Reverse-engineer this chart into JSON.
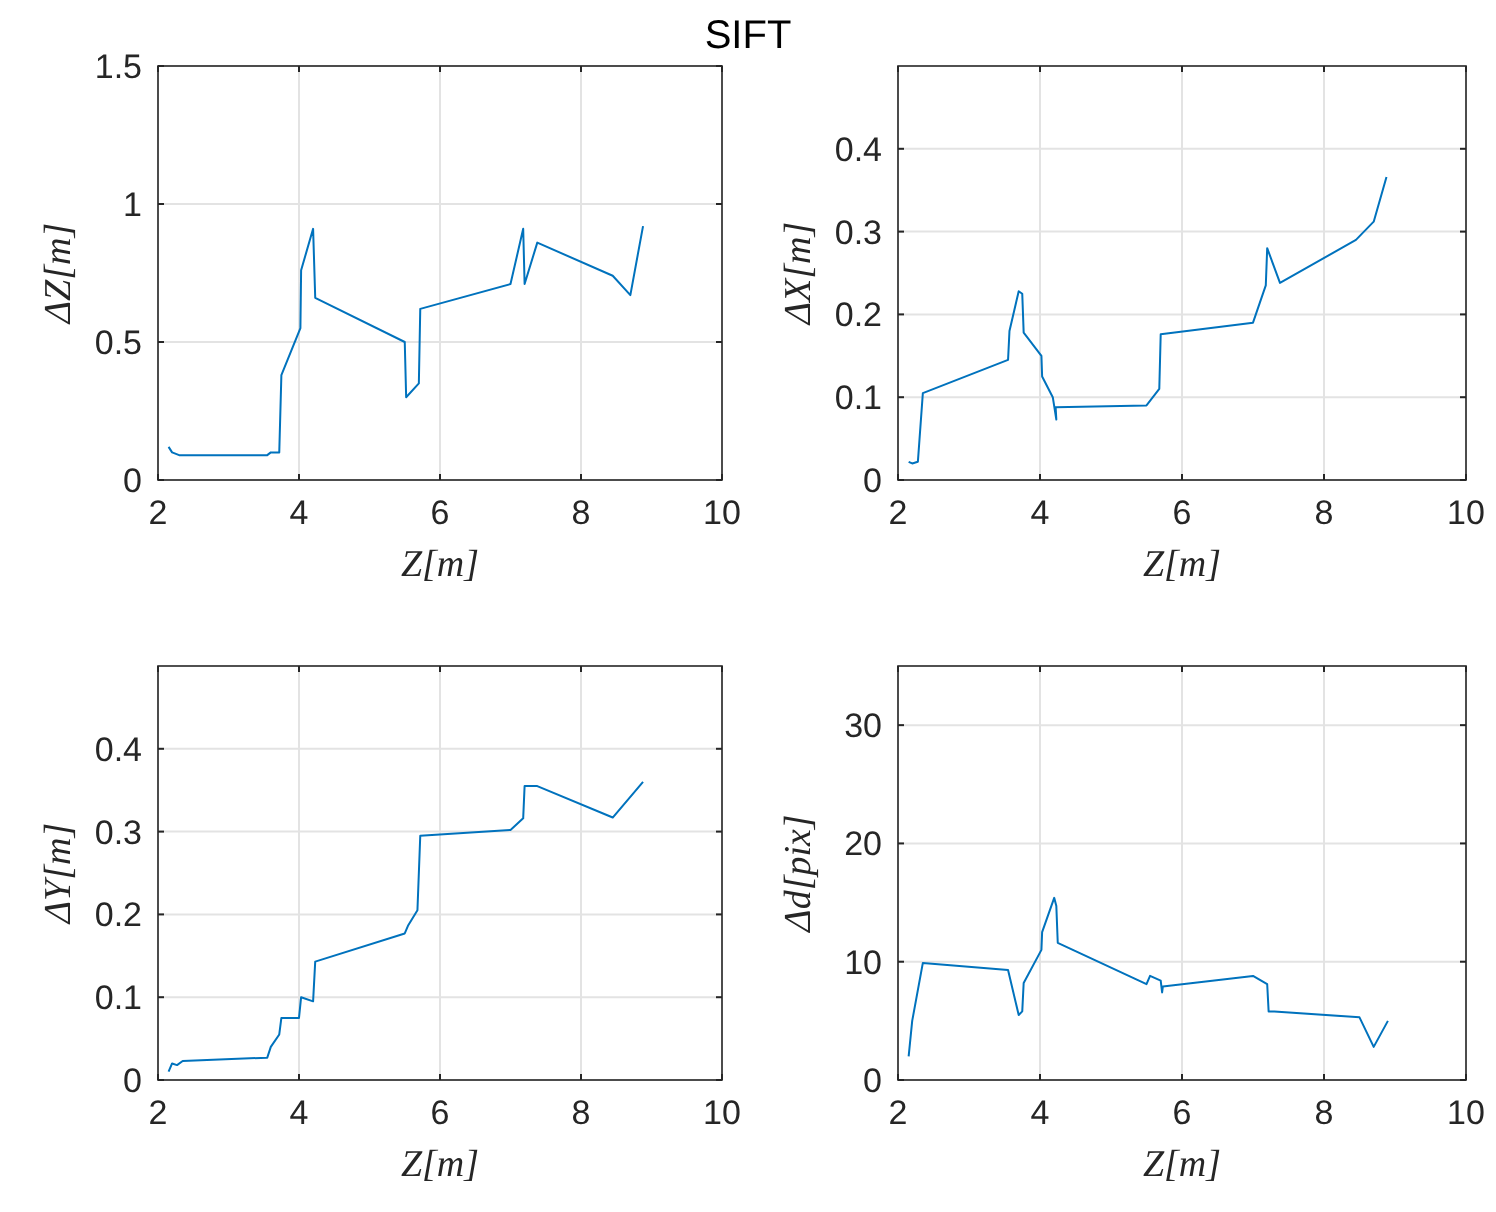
{
  "chart_data": [
    {
      "type": "line",
      "title": "SIFT",
      "xlabel": "Z[m]",
      "ylabel": "ΔZ[m]",
      "xlim": [
        2,
        10
      ],
      "xticks": [
        2,
        4,
        6,
        8,
        10
      ],
      "ylim": [
        0,
        1.5
      ],
      "yticks": [
        0,
        0.5,
        1,
        1.5
      ],
      "grid": true,
      "series": [
        {
          "color": "#0072bd",
          "x": [
            2.15,
            2.2,
            2.3,
            3.55,
            3.6,
            3.72,
            3.75,
            4.02,
            4.03,
            4.2,
            4.23,
            5.5,
            5.52,
            5.7,
            5.72,
            7.0,
            7.18,
            7.2,
            7.38,
            8.45,
            8.7,
            8.88
          ],
          "values": [
            0.12,
            0.1,
            0.09,
            0.09,
            0.1,
            0.1,
            0.38,
            0.55,
            0.76,
            0.91,
            0.66,
            0.5,
            0.3,
            0.35,
            0.62,
            0.71,
            0.91,
            0.71,
            0.86,
            0.74,
            0.67,
            0.92
          ]
        }
      ]
    },
    {
      "type": "line",
      "xlabel": "Z[m]",
      "ylabel": "ΔX[m]",
      "xlim": [
        2,
        10
      ],
      "xticks": [
        2,
        4,
        6,
        8,
        10
      ],
      "ylim": [
        0,
        0.5
      ],
      "yticks": [
        0,
        0.1,
        0.2,
        0.3,
        0.4
      ],
      "grid": true,
      "series": [
        {
          "color": "#0072bd",
          "x": [
            2.15,
            2.2,
            2.28,
            2.35,
            3.55,
            3.57,
            3.7,
            3.75,
            3.77,
            4.02,
            4.03,
            4.18,
            4.23,
            4.22,
            5.5,
            5.68,
            5.7,
            7.0,
            7.18,
            7.2,
            7.38,
            8.45,
            8.7,
            8.88
          ],
          "values": [
            0.022,
            0.02,
            0.022,
            0.105,
            0.145,
            0.18,
            0.228,
            0.225,
            0.178,
            0.15,
            0.125,
            0.1,
            0.073,
            0.088,
            0.09,
            0.11,
            0.176,
            0.19,
            0.235,
            0.28,
            0.238,
            0.29,
            0.312,
            0.366
          ]
        }
      ]
    },
    {
      "type": "line",
      "xlabel": "Z[m]",
      "ylabel": "ΔY[m]",
      "xlim": [
        2,
        10
      ],
      "xticks": [
        2,
        4,
        6,
        8,
        10
      ],
      "ylim": [
        0,
        0.5
      ],
      "yticks": [
        0,
        0.1,
        0.2,
        0.3,
        0.4
      ],
      "grid": true,
      "series": [
        {
          "color": "#0072bd",
          "x": [
            2.15,
            2.2,
            2.27,
            2.35,
            3.55,
            3.6,
            3.72,
            3.75,
            4.0,
            4.03,
            4.2,
            4.23,
            5.5,
            5.55,
            5.68,
            5.72,
            7.0,
            7.18,
            7.2,
            7.38,
            8.45,
            8.88
          ],
          "values": [
            0.01,
            0.02,
            0.018,
            0.023,
            0.027,
            0.04,
            0.055,
            0.075,
            0.075,
            0.1,
            0.095,
            0.143,
            0.177,
            0.187,
            0.205,
            0.295,
            0.302,
            0.316,
            0.355,
            0.355,
            0.317,
            0.36
          ]
        }
      ]
    },
    {
      "type": "line",
      "xlabel": "Z[m]",
      "ylabel": "Δd[pix]",
      "xlim": [
        2,
        10
      ],
      "xticks": [
        2,
        4,
        6,
        8,
        10
      ],
      "ylim": [
        0,
        35
      ],
      "yticks": [
        0,
        10,
        20,
        30
      ],
      "grid": true,
      "series": [
        {
          "color": "#0072bd",
          "x": [
            2.15,
            2.2,
            2.35,
            3.55,
            3.7,
            3.75,
            3.77,
            4.02,
            4.03,
            4.2,
            4.23,
            4.25,
            5.5,
            5.55,
            5.7,
            5.72,
            5.73,
            7.0,
            7.2,
            7.22,
            7.3,
            8.5,
            8.7,
            8.9
          ],
          "values": [
            2,
            5,
            9.9,
            9.3,
            5.5,
            5.8,
            8.2,
            11,
            12.5,
            15.4,
            14.7,
            11.6,
            8.1,
            8.8,
            8.4,
            7.4,
            7.9,
            8.8,
            8.1,
            5.8,
            5.8,
            5.3,
            2.8,
            5
          ]
        }
      ]
    }
  ]
}
